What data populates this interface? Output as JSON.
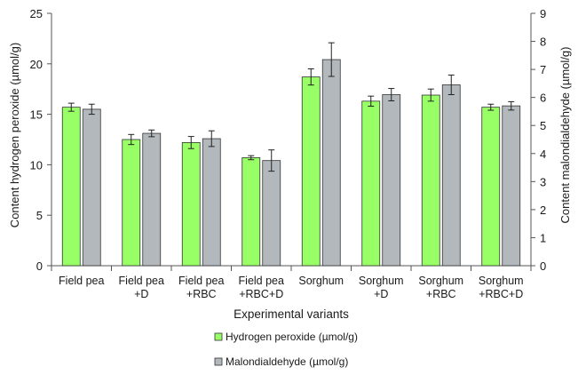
{
  "chart_data": {
    "type": "bar",
    "categories": [
      [
        "Field pea"
      ],
      [
        "Field pea",
        "+D"
      ],
      [
        "Field pea",
        "+RBC"
      ],
      [
        "Field pea",
        "+RBC+D"
      ],
      [
        "Sorghum"
      ],
      [
        "Sorghum",
        "+D"
      ],
      [
        "Sorghum",
        "+RBC"
      ],
      [
        "Sorghum",
        "+RBC+D"
      ]
    ],
    "xlabel": "Experimental variants",
    "ylabel_left": "Content hydrogen peroxide (µmol/g)",
    "ylabel_right": "Content malondialdehyde (µmol/g)",
    "ylim_left": [
      0,
      25
    ],
    "yticks_left": [
      "0",
      "5",
      "10",
      "15",
      "20",
      "25"
    ],
    "ylim_right": [
      0,
      9
    ],
    "yticks_right": [
      "0",
      "1",
      "2",
      "3",
      "4",
      "5",
      "6",
      "7",
      "8",
      "9"
    ],
    "grid": false,
    "legend_position": "bottom",
    "series": [
      {
        "name": "Hydrogen  peroxide  (µmol/g)",
        "axis": "left",
        "color": "#99ff66",
        "values": [
          15.7,
          12.5,
          12.2,
          10.7,
          18.7,
          16.3,
          16.9,
          15.7
        ],
        "errors": [
          0.4,
          0.5,
          0.6,
          0.2,
          0.8,
          0.5,
          0.6,
          0.3
        ]
      },
      {
        "name": "Malondialdehyde  (µmol/g)",
        "axis": "right",
        "color": "#b2b8bc",
        "values": [
          5.58,
          4.72,
          4.53,
          3.75,
          7.35,
          6.1,
          6.45,
          5.7
        ],
        "errors": [
          0.18,
          0.12,
          0.28,
          0.38,
          0.6,
          0.22,
          0.35,
          0.15
        ]
      }
    ]
  }
}
